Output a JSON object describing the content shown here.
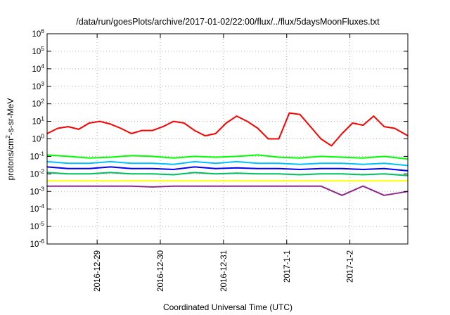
{
  "chart_data": {
    "type": "line",
    "title": "/data/run/goesPlots/archive/2017-01-02/22:00/flux/../flux/5daysMoonFluxes.txt",
    "xlabel": "Coordinated Universal Time (UTC)",
    "ylabel": {
      "base": "protons/cm",
      "sup": "2",
      "rest": "-s-sr-MeV"
    },
    "yscale": "log",
    "ylim": [
      1e-06,
      1000000.0
    ],
    "y_ticks": [
      {
        "base": "10",
        "exp": "-6",
        "value": 1e-06
      },
      {
        "base": "10",
        "exp": "-5",
        "value": 1e-05
      },
      {
        "base": "10",
        "exp": "-4",
        "value": 0.0001
      },
      {
        "base": "10",
        "exp": "-3",
        "value": 0.001
      },
      {
        "base": "10",
        "exp": "-2",
        "value": 0.01
      },
      {
        "base": "10",
        "exp": "-1",
        "value": 0.1
      },
      {
        "base": "10",
        "exp": "0",
        "value": 1
      },
      {
        "base": "10",
        "exp": "1",
        "value": 10
      },
      {
        "base": "10",
        "exp": "2",
        "value": 100
      },
      {
        "base": "10",
        "exp": "3",
        "value": 1000
      },
      {
        "base": "10",
        "exp": "4",
        "value": 10000
      },
      {
        "base": "10",
        "exp": "5",
        "value": 100000
      },
      {
        "base": "10",
        "exp": "6",
        "value": 1000000
      }
    ],
    "xlim": [
      "2016-12-28T05:00",
      "2017-01-02T22:00"
    ],
    "x_ticks": [
      {
        "label": "2016-12-29",
        "value": "2016-12-29T00:00"
      },
      {
        "label": "2016-12-30",
        "value": "2016-12-30T00:00"
      },
      {
        "label": "2016-12-31",
        "value": "2016-12-31T00:00"
      },
      {
        "label": "2017-1-1",
        "value": "2017-01-01T00:00"
      },
      {
        "label": "2017-1-2",
        "value": "2017-01-02T00:00"
      }
    ],
    "grid": true,
    "legend": "none",
    "series": [
      {
        "color": "#ff0000",
        "x": [
          "2016-12-28T05:00",
          "2016-12-28T09:00",
          "2016-12-28T13:00",
          "2016-12-28T17:00",
          "2016-12-28T21:00",
          "2016-12-29T01:00",
          "2016-12-29T05:00",
          "2016-12-29T09:00",
          "2016-12-29T13:00",
          "2016-12-29T17:00",
          "2016-12-29T21:00",
          "2016-12-30T01:00",
          "2016-12-30T05:00",
          "2016-12-30T09:00",
          "2016-12-30T13:00",
          "2016-12-30T17:00",
          "2016-12-30T21:00",
          "2016-12-31T01:00",
          "2016-12-31T05:00",
          "2016-12-31T09:00",
          "2016-12-31T13:00",
          "2016-12-31T17:00",
          "2016-12-31T21:00",
          "2017-01-01T01:00",
          "2017-01-01T05:00",
          "2017-01-01T09:00",
          "2017-01-01T13:00",
          "2017-01-01T17:00",
          "2017-01-01T21:00",
          "2017-01-02T01:00",
          "2017-01-02T05:00",
          "2017-01-02T09:00",
          "2017-01-02T13:00",
          "2017-01-02T17:00",
          "2017-01-02T22:00"
        ],
        "values": [
          2.0,
          4.0,
          5.0,
          3.5,
          8.0,
          10.0,
          7.0,
          4.0,
          2.0,
          3.0,
          3.0,
          5.0,
          10.0,
          8.0,
          3.0,
          1.5,
          2.0,
          8.0,
          20.0,
          10.0,
          4.0,
          1.0,
          1.0,
          30.0,
          25.0,
          5.0,
          1.0,
          0.4,
          2.0,
          8.0,
          6.0,
          20.0,
          5.0,
          4.0,
          1.5
        ]
      },
      {
        "color": "#00ff00",
        "x": [
          "2016-12-28T05:00",
          "2016-12-28T13:00",
          "2016-12-28T21:00",
          "2016-12-29T05:00",
          "2016-12-29T13:00",
          "2016-12-29T21:00",
          "2016-12-30T05:00",
          "2016-12-30T13:00",
          "2016-12-30T21:00",
          "2016-12-31T05:00",
          "2016-12-31T13:00",
          "2016-12-31T21:00",
          "2017-01-01T05:00",
          "2017-01-01T13:00",
          "2017-01-01T21:00",
          "2017-01-02T05:00",
          "2017-01-02T13:00",
          "2017-01-02T22:00"
        ],
        "values": [
          0.12,
          0.1,
          0.08,
          0.09,
          0.11,
          0.1,
          0.08,
          0.1,
          0.09,
          0.1,
          0.12,
          0.09,
          0.08,
          0.1,
          0.09,
          0.08,
          0.1,
          0.07
        ]
      },
      {
        "color": "#00c0ff",
        "x": [
          "2016-12-28T05:00",
          "2016-12-28T13:00",
          "2016-12-28T21:00",
          "2016-12-29T05:00",
          "2016-12-29T13:00",
          "2016-12-29T21:00",
          "2016-12-30T05:00",
          "2016-12-30T13:00",
          "2016-12-30T21:00",
          "2016-12-31T05:00",
          "2016-12-31T13:00",
          "2016-12-31T21:00",
          "2017-01-01T05:00",
          "2017-01-01T13:00",
          "2017-01-01T21:00",
          "2017-01-02T05:00",
          "2017-01-02T13:00",
          "2017-01-02T22:00"
        ],
        "values": [
          0.05,
          0.04,
          0.04,
          0.05,
          0.04,
          0.04,
          0.035,
          0.05,
          0.04,
          0.05,
          0.04,
          0.04,
          0.035,
          0.04,
          0.04,
          0.035,
          0.04,
          0.03
        ]
      },
      {
        "color": "#0000ff",
        "x": [
          "2016-12-28T05:00",
          "2016-12-28T13:00",
          "2016-12-28T21:00",
          "2016-12-29T05:00",
          "2016-12-29T13:00",
          "2016-12-29T21:00",
          "2016-12-30T05:00",
          "2016-12-30T13:00",
          "2016-12-30T21:00",
          "2016-12-31T05:00",
          "2016-12-31T13:00",
          "2016-12-31T21:00",
          "2017-01-01T05:00",
          "2017-01-01T13:00",
          "2017-01-01T21:00",
          "2017-01-02T05:00",
          "2017-01-02T13:00",
          "2017-01-02T22:00"
        ],
        "values": [
          0.025,
          0.02,
          0.02,
          0.025,
          0.02,
          0.02,
          0.018,
          0.025,
          0.02,
          0.022,
          0.02,
          0.02,
          0.018,
          0.02,
          0.02,
          0.018,
          0.02,
          0.015
        ]
      },
      {
        "color": "#00c060",
        "x": [
          "2016-12-28T05:00",
          "2016-12-28T13:00",
          "2016-12-28T21:00",
          "2016-12-29T05:00",
          "2016-12-29T13:00",
          "2016-12-29T21:00",
          "2016-12-30T05:00",
          "2016-12-30T13:00",
          "2016-12-30T21:00",
          "2016-12-31T05:00",
          "2016-12-31T13:00",
          "2016-12-31T21:00",
          "2017-01-01T05:00",
          "2017-01-01T13:00",
          "2017-01-01T21:00",
          "2017-01-02T05:00",
          "2017-01-02T13:00",
          "2017-01-02T22:00"
        ],
        "values": [
          0.012,
          0.01,
          0.01,
          0.012,
          0.01,
          0.01,
          0.009,
          0.012,
          0.01,
          0.011,
          0.01,
          0.01,
          0.009,
          0.01,
          0.01,
          0.009,
          0.01,
          0.008
        ]
      },
      {
        "color": "#ffff00",
        "x": [
          "2016-12-28T05:00",
          "2016-12-28T13:00",
          "2016-12-28T21:00",
          "2016-12-29T05:00",
          "2016-12-29T13:00",
          "2016-12-29T21:00",
          "2016-12-30T05:00",
          "2016-12-30T13:00",
          "2016-12-30T21:00",
          "2016-12-31T05:00",
          "2016-12-31T13:00",
          "2016-12-31T21:00",
          "2017-01-01T05:00",
          "2017-01-01T13:00",
          "2017-01-01T21:00",
          "2017-01-02T05:00",
          "2017-01-02T13:00",
          "2017-01-02T22:00"
        ],
        "values": [
          0.004,
          0.004,
          0.004,
          0.004,
          0.004,
          0.004,
          0.004,
          0.004,
          0.004,
          0.004,
          0.004,
          0.004,
          0.004,
          0.004,
          0.004,
          0.004,
          0.004,
          0.004
        ]
      },
      {
        "color": "#8b2a8b",
        "x": [
          "2016-12-28T05:00",
          "2016-12-28T13:00",
          "2016-12-28T21:00",
          "2016-12-29T05:00",
          "2016-12-29T13:00",
          "2016-12-29T21:00",
          "2016-12-30T05:00",
          "2016-12-30T13:00",
          "2016-12-30T21:00",
          "2016-12-31T05:00",
          "2016-12-31T13:00",
          "2016-12-31T21:00",
          "2017-01-01T05:00",
          "2017-01-01T13:00",
          "2017-01-01T21:00",
          "2017-01-02T05:00",
          "2017-01-02T13:00",
          "2017-01-02T22:00"
        ],
        "values": [
          0.002,
          0.002,
          0.002,
          0.002,
          0.002,
          0.0018,
          0.002,
          0.002,
          0.002,
          0.002,
          0.002,
          0.002,
          0.002,
          0.002,
          0.0006,
          0.002,
          0.0006,
          0.001
        ]
      }
    ]
  }
}
